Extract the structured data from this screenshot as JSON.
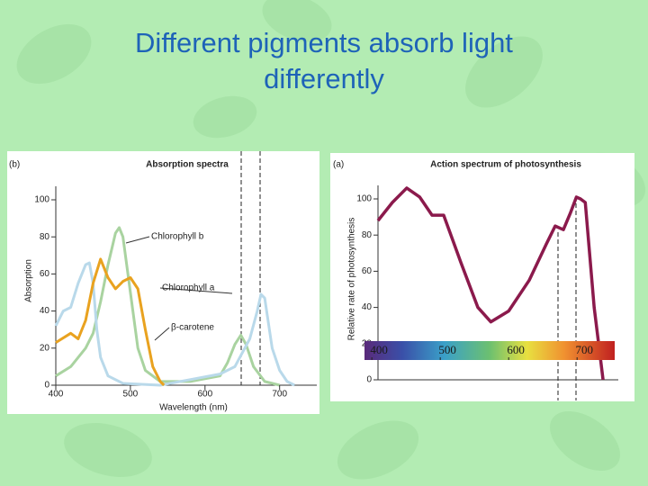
{
  "title": "Different pigments absorb light differently",
  "chart_data": [
    {
      "type": "line",
      "label": "(b)",
      "title": "Absorption spectra",
      "xlabel": "Wavelength (nm)",
      "ylabel": "Absorption",
      "xlim": [
        400,
        745
      ],
      "ylim": [
        0,
        100
      ],
      "xticks": [
        400,
        500,
        600,
        700
      ],
      "yticks": [
        0,
        20,
        40,
        60,
        80,
        100
      ],
      "series": [
        {
          "name": "Chlorophyll b",
          "color": "#a9d3a0",
          "x": [
            400,
            420,
            440,
            450,
            460,
            470,
            480,
            485,
            490,
            500,
            510,
            520,
            540,
            580,
            620,
            630,
            640,
            648,
            655,
            665,
            680,
            700
          ],
          "values": [
            5,
            10,
            20,
            28,
            45,
            65,
            82,
            85,
            80,
            50,
            20,
            8,
            2,
            2,
            5,
            12,
            22,
            27,
            22,
            10,
            2,
            0
          ]
        },
        {
          "name": "Chlorophyll a",
          "color": "#b9d9ea",
          "x": [
            400,
            410,
            420,
            430,
            440,
            445,
            450,
            455,
            460,
            470,
            490,
            540,
            580,
            620,
            640,
            660,
            670,
            675,
            680,
            690,
            700,
            710,
            720
          ],
          "values": [
            32,
            40,
            42,
            55,
            65,
            66,
            55,
            30,
            15,
            5,
            1,
            0,
            3,
            6,
            10,
            25,
            40,
            49,
            47,
            20,
            8,
            2,
            0
          ]
        },
        {
          "name": "β-carotene",
          "color": "#e9a21f",
          "x": [
            400,
            420,
            430,
            440,
            450,
            460,
            470,
            480,
            490,
            500,
            510,
            520,
            530,
            540,
            545
          ],
          "values": [
            23,
            28,
            25,
            35,
            55,
            68,
            58,
            52,
            56,
            58,
            52,
            30,
            10,
            2,
            0
          ]
        }
      ]
    },
    {
      "type": "line",
      "label": "(a)",
      "title": "Action spectrum of photosynthesis",
      "ylabel": "Relative rate of photosynthesis",
      "xlim": [
        409,
        755
      ],
      "ylim": [
        0,
        100
      ],
      "xticks": [
        400,
        500,
        600,
        700
      ],
      "yticks": [
        0,
        20,
        40,
        60,
        80,
        100
      ],
      "series": [
        {
          "color": "#8b1a4c",
          "x": [
            409,
            430,
            451,
            470,
            488,
            505,
            530,
            555,
            574,
            600,
            630,
            655,
            668,
            680,
            690,
            699,
            705,
            712,
            725,
            738
          ],
          "values": [
            88,
            98,
            106,
            101,
            91,
            91,
            65,
            40,
            32,
            38,
            55,
            75,
            85,
            83,
            92,
            101,
            100,
            98,
            40,
            0
          ]
        }
      ]
    }
  ]
}
